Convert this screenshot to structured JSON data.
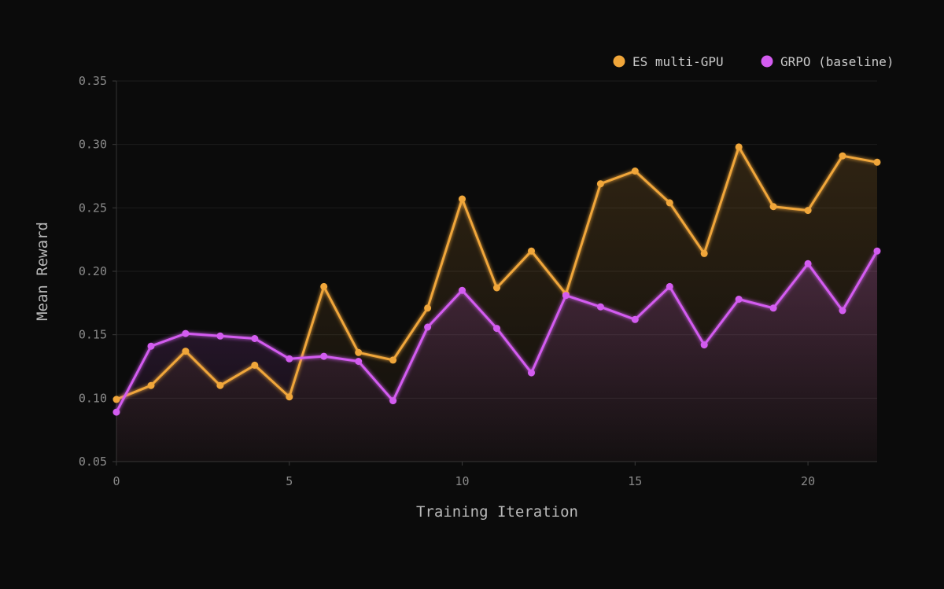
{
  "chart_data": {
    "type": "line",
    "title": "",
    "xlabel": "Training Iteration",
    "ylabel": "Mean Reward",
    "x": [
      0,
      1,
      2,
      3,
      4,
      5,
      6,
      7,
      8,
      9,
      10,
      11,
      12,
      13,
      14,
      15,
      16,
      17,
      18,
      19,
      20,
      21,
      22
    ],
    "xlim": [
      0,
      22
    ],
    "ylim": [
      0.05,
      0.35
    ],
    "xticks": [
      0,
      5,
      10,
      15,
      20
    ],
    "xtick_labels": [
      "0",
      "5",
      "10",
      "15",
      "20"
    ],
    "yticks": [
      0.05,
      0.1,
      0.15,
      0.2,
      0.25,
      0.3,
      0.35
    ],
    "ytick_labels": [
      "0.05",
      "0.10",
      "0.15",
      "0.20",
      "0.25",
      "0.30",
      "0.35"
    ],
    "grid": "horizontal",
    "legend_position": "top-right",
    "series": [
      {
        "name": "ES multi-GPU",
        "color": "#f0a63a",
        "values": [
          0.099,
          0.11,
          0.137,
          0.11,
          0.126,
          0.101,
          0.188,
          0.136,
          0.13,
          0.171,
          0.257,
          0.187,
          0.216,
          0.182,
          0.269,
          0.279,
          0.254,
          0.214,
          0.298,
          0.251,
          0.248,
          0.291,
          0.286
        ]
      },
      {
        "name": "GRPO (baseline)",
        "color": "#d35cf0",
        "values": [
          0.089,
          0.141,
          0.151,
          0.149,
          0.147,
          0.131,
          0.133,
          0.129,
          0.098,
          0.156,
          0.185,
          0.155,
          0.12,
          0.181,
          0.172,
          0.162,
          0.188,
          0.142,
          0.178,
          0.171,
          0.206,
          0.169,
          0.216
        ]
      }
    ]
  }
}
